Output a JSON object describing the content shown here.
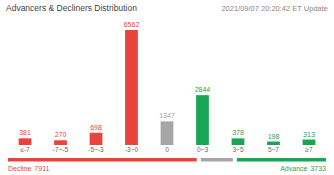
{
  "chart_data": {
    "type": "bar",
    "title": "Advancers & Decliners Distribution",
    "subtitle": "2021/09/07 20:20:42 ET Update",
    "categories": [
      "≤-7",
      "-7~-5",
      "-5~-3",
      "-3~0",
      "0",
      "0~3",
      "3~5",
      "5~7",
      "≥7"
    ],
    "values": [
      381,
      270,
      698,
      6562,
      1347,
      2844,
      378,
      198,
      313
    ],
    "colors": [
      "#e8433d",
      "#e8433d",
      "#e8433d",
      "#e8433d",
      "#a6a6a6",
      "#19a654",
      "#19a654",
      "#19a654",
      "#19a654"
    ],
    "data_labels": true,
    "tick_labels": "x",
    "grid": false,
    "decline": {
      "label": "Decline",
      "value": 7911
    },
    "advance": {
      "label": "Advance",
      "value": 3733
    }
  }
}
